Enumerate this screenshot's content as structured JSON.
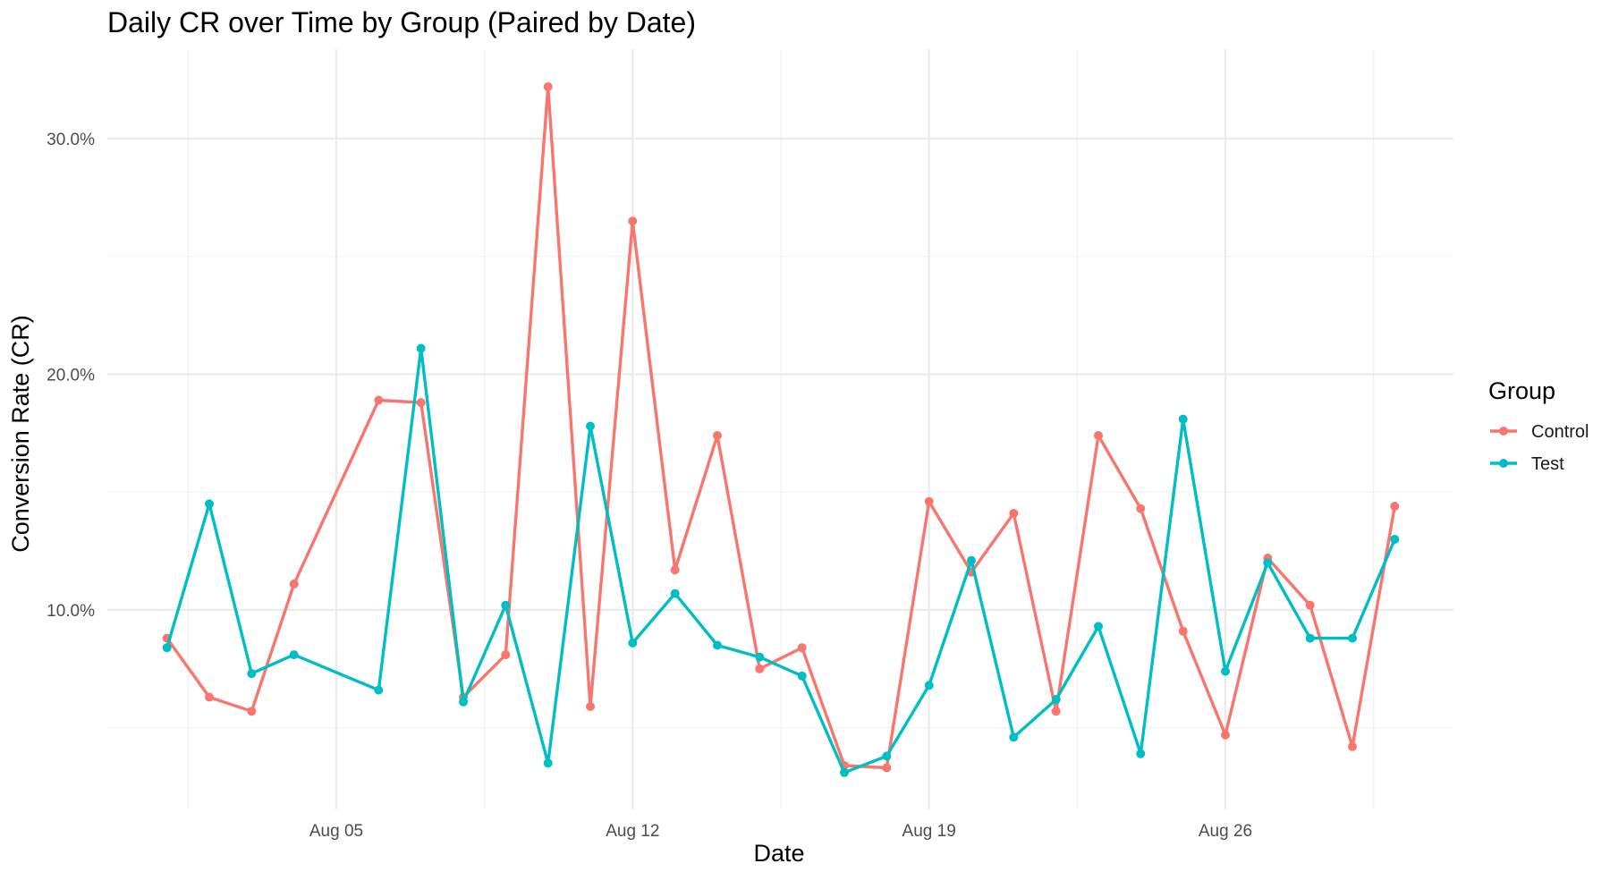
{
  "chart_data": {
    "type": "line",
    "title": "Daily CR over Time by Group (Paired by Date)",
    "xlabel": "Date",
    "ylabel": "Conversion Rate (CR)",
    "x_ticks": [
      {
        "date": "2024-08-05",
        "label": "Aug 05"
      },
      {
        "date": "2024-08-12",
        "label": "Aug 12"
      },
      {
        "date": "2024-08-19",
        "label": "Aug 19"
      },
      {
        "date": "2024-08-26",
        "label": "Aug 26"
      }
    ],
    "y_ticks": [
      {
        "value": 0.1,
        "label": "10.0%"
      },
      {
        "value": 0.2,
        "label": "20.0%"
      },
      {
        "value": 0.3,
        "label": "30.0%"
      }
    ],
    "grid": true,
    "legend": {
      "title": "Group",
      "position": "right"
    },
    "series": [
      {
        "name": "Control",
        "color": "#F8766D",
        "points": [
          {
            "x": "2024-08-01",
            "y": 0.088
          },
          {
            "x": "2024-08-02",
            "y": 0.063
          },
          {
            "x": "2024-08-03",
            "y": 0.057
          },
          {
            "x": "2024-08-04",
            "y": 0.111
          },
          {
            "x": "2024-08-06",
            "y": 0.189
          },
          {
            "x": "2024-08-07",
            "y": 0.188
          },
          {
            "x": "2024-08-08",
            "y": 0.063
          },
          {
            "x": "2024-08-09",
            "y": 0.081
          },
          {
            "x": "2024-08-10",
            "y": 0.322
          },
          {
            "x": "2024-08-11",
            "y": 0.059
          },
          {
            "x": "2024-08-12",
            "y": 0.265
          },
          {
            "x": "2024-08-13",
            "y": 0.117
          },
          {
            "x": "2024-08-14",
            "y": 0.174
          },
          {
            "x": "2024-08-15",
            "y": 0.075
          },
          {
            "x": "2024-08-16",
            "y": 0.084
          },
          {
            "x": "2024-08-17",
            "y": 0.034
          },
          {
            "x": "2024-08-18",
            "y": 0.033
          },
          {
            "x": "2024-08-19",
            "y": 0.146
          },
          {
            "x": "2024-08-20",
            "y": 0.116
          },
          {
            "x": "2024-08-21",
            "y": 0.141
          },
          {
            "x": "2024-08-22",
            "y": 0.057
          },
          {
            "x": "2024-08-23",
            "y": 0.174
          },
          {
            "x": "2024-08-24",
            "y": 0.143
          },
          {
            "x": "2024-08-25",
            "y": 0.091
          },
          {
            "x": "2024-08-26",
            "y": 0.047
          },
          {
            "x": "2024-08-27",
            "y": 0.122
          },
          {
            "x": "2024-08-28",
            "y": 0.102
          },
          {
            "x": "2024-08-29",
            "y": 0.042
          },
          {
            "x": "2024-08-30",
            "y": 0.144
          }
        ]
      },
      {
        "name": "Test",
        "color": "#00BFC4",
        "points": [
          {
            "x": "2024-08-01",
            "y": 0.084
          },
          {
            "x": "2024-08-02",
            "y": 0.145
          },
          {
            "x": "2024-08-03",
            "y": 0.073
          },
          {
            "x": "2024-08-04",
            "y": 0.081
          },
          {
            "x": "2024-08-06",
            "y": 0.066
          },
          {
            "x": "2024-08-07",
            "y": 0.211
          },
          {
            "x": "2024-08-08",
            "y": 0.061
          },
          {
            "x": "2024-08-09",
            "y": 0.102
          },
          {
            "x": "2024-08-10",
            "y": 0.035
          },
          {
            "x": "2024-08-11",
            "y": 0.178
          },
          {
            "x": "2024-08-12",
            "y": 0.086
          },
          {
            "x": "2024-08-13",
            "y": 0.107
          },
          {
            "x": "2024-08-14",
            "y": 0.085
          },
          {
            "x": "2024-08-15",
            "y": 0.08
          },
          {
            "x": "2024-08-16",
            "y": 0.072
          },
          {
            "x": "2024-08-17",
            "y": 0.031
          },
          {
            "x": "2024-08-18",
            "y": 0.038
          },
          {
            "x": "2024-08-19",
            "y": 0.068
          },
          {
            "x": "2024-08-20",
            "y": 0.121
          },
          {
            "x": "2024-08-21",
            "y": 0.046
          },
          {
            "x": "2024-08-22",
            "y": 0.062
          },
          {
            "x": "2024-08-23",
            "y": 0.093
          },
          {
            "x": "2024-08-24",
            "y": 0.039
          },
          {
            "x": "2024-08-25",
            "y": 0.181
          },
          {
            "x": "2024-08-26",
            "y": 0.074
          },
          {
            "x": "2024-08-27",
            "y": 0.12
          },
          {
            "x": "2024-08-28",
            "y": 0.088
          },
          {
            "x": "2024-08-29",
            "y": 0.088
          },
          {
            "x": "2024-08-30",
            "y": 0.13
          }
        ]
      }
    ]
  }
}
